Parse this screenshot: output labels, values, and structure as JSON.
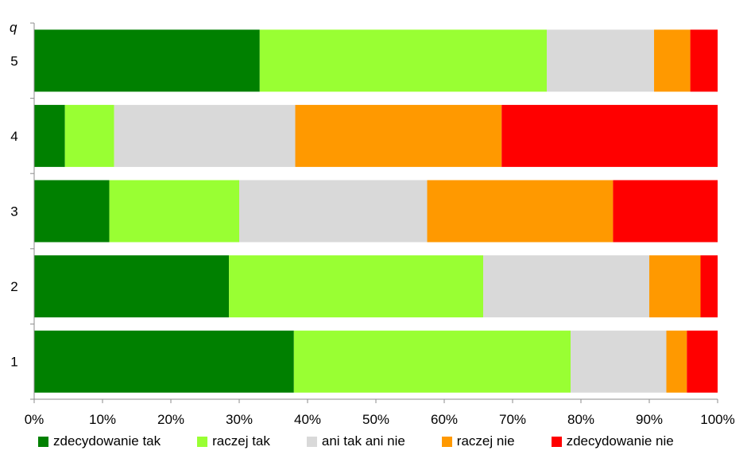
{
  "chart_data": {
    "type": "bar",
    "orientation": "horizontal",
    "stacked": "percent",
    "y_axis_title": "q",
    "categories": [
      "1",
      "2",
      "3",
      "4",
      "5"
    ],
    "xlim": [
      0,
      100
    ],
    "x_ticks": [
      "0%",
      "10%",
      "20%",
      "30%",
      "40%",
      "50%",
      "60%",
      "70%",
      "80%",
      "90%",
      "100%"
    ],
    "series": [
      {
        "name": "zdecydowanie tak",
        "color": "#008000",
        "values": [
          38,
          28.5,
          11,
          4.5,
          33
        ]
      },
      {
        "name": "raczej tak",
        "color": "#99ff33",
        "values": [
          40.5,
          37.2,
          19,
          7.2,
          42
        ]
      },
      {
        "name": "ani tak ani nie",
        "color": "#d9d9d9",
        "values": [
          14,
          24.3,
          27.5,
          26.5,
          15.7
        ]
      },
      {
        "name": "raczej nie",
        "color": "#ff9900",
        "values": [
          3,
          7.5,
          27.2,
          30.2,
          5.3
        ]
      },
      {
        "name": "zdecydowanie nie",
        "color": "#ff0000",
        "values": [
          4.5,
          2.5,
          15.3,
          31.6,
          4
        ]
      }
    ],
    "legend_position": "bottom",
    "grid": false
  }
}
